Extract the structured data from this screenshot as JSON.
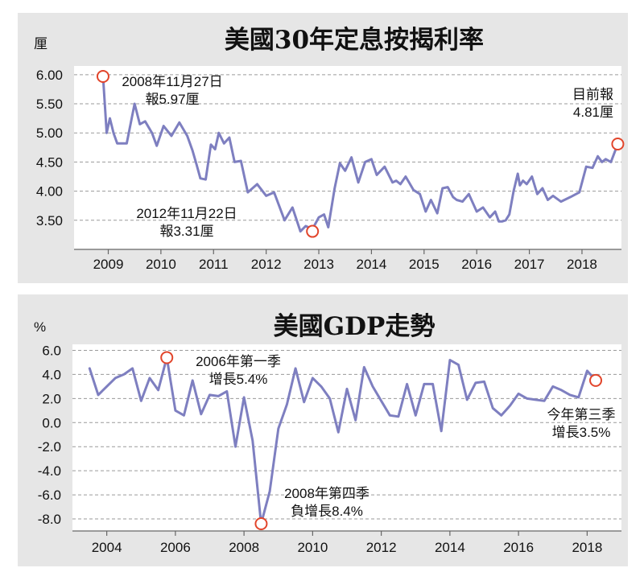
{
  "chart_data": [
    {
      "type": "line",
      "title": "美國30年定息按揭利率",
      "unit": "厘",
      "y_ticks": [
        "6.00",
        "5.50",
        "5.00",
        "4.50",
        "4.00",
        "3.50"
      ],
      "x_ticks": [
        "2009",
        "2010",
        "2011",
        "2012",
        "2013",
        "2014",
        "2015",
        "2016",
        "2017",
        "2018"
      ],
      "ylim": [
        3.0,
        6.15
      ],
      "xlim": [
        2008.35,
        2018.75
      ],
      "grid": true,
      "line_color": "#7e7fc0",
      "marker_color": "#e2452b",
      "series": [
        {
          "x": [
            2008.9,
            2008.97,
            2009.03,
            2009.1,
            2009.17,
            2009.25,
            2009.35,
            2009.5,
            2009.6,
            2009.7,
            2009.83,
            2009.92,
            2010.05,
            2010.2,
            2010.35,
            2010.5,
            2010.6,
            2010.68,
            2010.75,
            2010.85,
            2010.95,
            2011.03,
            2011.1,
            2011.2,
            2011.3,
            2011.4,
            2011.52,
            2011.65,
            2011.83,
            2012.0,
            2012.15,
            2012.35,
            2012.5,
            2012.65,
            2012.75,
            2012.88,
            2013.0,
            2013.1,
            2013.18,
            2013.3,
            2013.4,
            2013.5,
            2013.62,
            2013.75,
            2013.88,
            2014.0,
            2014.1,
            2014.25,
            2014.4,
            2014.47,
            2014.55,
            2014.65,
            2014.8,
            2014.92,
            2015.03,
            2015.13,
            2015.25,
            2015.35,
            2015.45,
            2015.55,
            2015.62,
            2015.73,
            2015.85,
            2016.0,
            2016.12,
            2016.25,
            2016.35,
            2016.42,
            2016.48,
            2016.55,
            2016.62,
            2016.7,
            2016.78,
            2016.82,
            2016.88,
            2016.95,
            2017.05,
            2017.15,
            2017.25,
            2017.35,
            2017.45,
            2017.6,
            2017.78,
            2017.95,
            2018.08,
            2018.2,
            2018.3,
            2018.38,
            2018.45,
            2018.55,
            2018.68
          ],
          "y": [
            5.97,
            5.0,
            5.25,
            5.0,
            4.82,
            4.82,
            4.82,
            5.5,
            5.15,
            5.2,
            5.0,
            4.78,
            5.12,
            4.95,
            5.18,
            4.95,
            4.7,
            4.45,
            4.22,
            4.2,
            4.8,
            4.72,
            5.0,
            4.82,
            4.92,
            4.5,
            4.52,
            3.98,
            4.12,
            3.92,
            3.98,
            3.5,
            3.72,
            3.31,
            3.4,
            3.35,
            3.55,
            3.6,
            3.38,
            4.05,
            4.48,
            4.35,
            4.58,
            4.15,
            4.5,
            4.55,
            4.28,
            4.42,
            4.15,
            4.18,
            4.12,
            4.25,
            4.02,
            3.95,
            3.65,
            3.85,
            3.62,
            4.05,
            4.07,
            3.9,
            3.85,
            3.82,
            3.95,
            3.65,
            3.72,
            3.55,
            3.65,
            3.48,
            3.48,
            3.5,
            3.6,
            4.0,
            4.3,
            4.1,
            4.18,
            4.12,
            4.25,
            3.95,
            4.05,
            3.85,
            3.92,
            3.82,
            3.9,
            3.98,
            4.42,
            4.4,
            4.6,
            4.5,
            4.55,
            4.5,
            4.81
          ]
        }
      ],
      "annotations": [
        {
          "point": [
            2008.9,
            5.97
          ],
          "lines": [
            "2008年11月27日",
            "報5.97厘"
          ]
        },
        {
          "point": [
            2012.88,
            3.31
          ],
          "lines": [
            "2012年11月22日",
            "報3.31厘"
          ]
        },
        {
          "point": [
            2018.68,
            4.81
          ],
          "lines": [
            "目前報",
            "4.81厘"
          ]
        }
      ]
    },
    {
      "type": "line",
      "title": "美國GDP走勢",
      "unit": "%",
      "y_ticks": [
        "6.0",
        "4.0",
        "2.0",
        "0.0",
        "-2.0",
        "-4.0",
        "-6.0",
        "-8.0"
      ],
      "x_ticks": [
        "2004",
        "2006",
        "2008",
        "2010",
        "2012",
        "2014",
        "2016",
        "2018"
      ],
      "ylim": [
        -9.0,
        6.5
      ],
      "xlim": [
        2003.0,
        2019.0
      ],
      "grid": true,
      "line_color": "#7e7fc0",
      "marker_color": "#e2452b",
      "series": [
        {
          "x": [
            2003.5,
            2003.75,
            2004.0,
            2004.25,
            2004.5,
            2004.75,
            2005.0,
            2005.25,
            2005.5,
            2005.75,
            2006.0,
            2006.25,
            2006.5,
            2006.75,
            2007.0,
            2007.25,
            2007.5,
            2007.75,
            2008.0,
            2008.25,
            2008.5,
            2008.75,
            2009.0,
            2009.25,
            2009.5,
            2009.75,
            2010.0,
            2010.25,
            2010.5,
            2010.75,
            2011.0,
            2011.25,
            2011.5,
            2011.75,
            2012.0,
            2012.25,
            2012.5,
            2012.75,
            2013.0,
            2013.25,
            2013.5,
            2013.75,
            2014.0,
            2014.25,
            2014.5,
            2014.75,
            2015.0,
            2015.25,
            2015.5,
            2015.75,
            2016.0,
            2016.25,
            2016.5,
            2016.75,
            2017.0,
            2017.25,
            2017.5,
            2017.75,
            2018.0,
            2018.25
          ],
          "y": [
            4.5,
            2.3,
            3.0,
            3.7,
            4.0,
            4.5,
            1.8,
            3.7,
            2.7,
            5.4,
            1.0,
            0.6,
            3.5,
            0.7,
            2.3,
            2.2,
            2.6,
            -2.0,
            2.1,
            -1.5,
            -8.4,
            -5.7,
            -0.5,
            1.5,
            4.5,
            1.7,
            3.7,
            3.0,
            2.0,
            -0.8,
            2.8,
            0.2,
            4.6,
            3.0,
            1.8,
            0.6,
            0.5,
            3.2,
            0.6,
            3.2,
            3.2,
            -0.7,
            5.2,
            4.8,
            1.9,
            3.3,
            3.4,
            1.2,
            0.6,
            1.4,
            2.4,
            2.0,
            1.9,
            1.8,
            3.0,
            2.7,
            2.3,
            2.1,
            4.3,
            3.5
          ]
        }
      ],
      "annotations": [
        {
          "point": [
            2005.75,
            5.4
          ],
          "lines": [
            "2006年第一季",
            "增長5.4%"
          ]
        },
        {
          "point": [
            2008.5,
            -8.4
          ],
          "lines": [
            "2008年第四季",
            "負增長8.4%"
          ]
        },
        {
          "point": [
            2018.25,
            3.5
          ],
          "lines": [
            "今年第三季",
            "增長3.5%"
          ]
        }
      ]
    }
  ]
}
